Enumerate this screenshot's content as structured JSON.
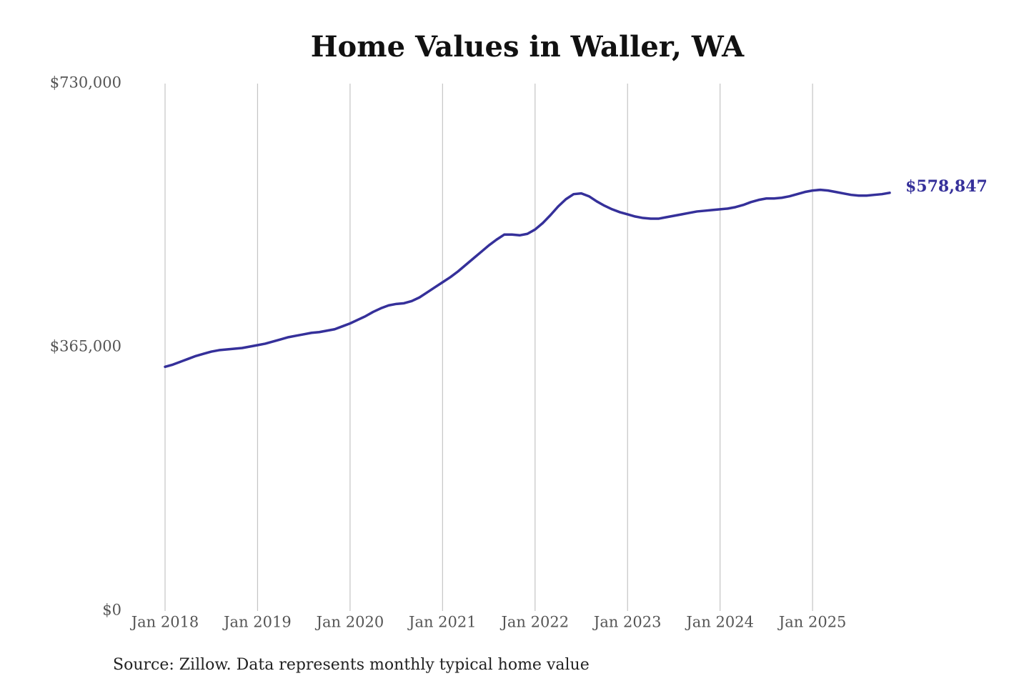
{
  "chart_data": {
    "type": "line",
    "title": "Home Values in Waller, WA",
    "source": "Source: Zillow. Data represents monthly typical home value",
    "x": [
      "2018-01",
      "2018-02",
      "2018-03",
      "2018-04",
      "2018-05",
      "2018-06",
      "2018-07",
      "2018-08",
      "2018-09",
      "2018-10",
      "2018-11",
      "2018-12",
      "2019-01",
      "2019-02",
      "2019-03",
      "2019-04",
      "2019-05",
      "2019-06",
      "2019-07",
      "2019-08",
      "2019-09",
      "2019-10",
      "2019-11",
      "2019-12",
      "2020-01",
      "2020-02",
      "2020-03",
      "2020-04",
      "2020-05",
      "2020-06",
      "2020-07",
      "2020-08",
      "2020-09",
      "2020-10",
      "2020-11",
      "2020-12",
      "2021-01",
      "2021-02",
      "2021-03",
      "2021-04",
      "2021-05",
      "2021-06",
      "2021-07",
      "2021-08",
      "2021-09",
      "2021-10",
      "2021-11",
      "2021-12",
      "2022-01",
      "2022-02",
      "2022-03",
      "2022-04",
      "2022-05",
      "2022-06",
      "2022-07",
      "2022-08",
      "2022-09",
      "2022-10",
      "2022-11",
      "2022-12",
      "2023-01",
      "2023-02",
      "2023-03",
      "2023-04",
      "2023-05",
      "2023-06",
      "2023-07",
      "2023-08",
      "2023-09",
      "2023-10",
      "2023-11",
      "2023-12",
      "2024-01",
      "2024-02",
      "2024-03",
      "2024-04",
      "2024-05",
      "2024-06",
      "2024-07",
      "2024-08",
      "2024-09",
      "2024-10",
      "2024-11",
      "2024-12",
      "2025-01",
      "2025-02",
      "2025-03",
      "2025-04",
      "2025-05",
      "2025-06",
      "2025-07",
      "2025-08",
      "2025-09",
      "2025-10",
      "2025-11"
    ],
    "series": [
      {
        "name": "Home value",
        "color": "#35309a",
        "values": [
          338000,
          341000,
          345000,
          349000,
          353000,
          356000,
          359000,
          361000,
          362000,
          363000,
          364000,
          366000,
          368000,
          370000,
          373000,
          376000,
          379000,
          381000,
          383000,
          385000,
          386000,
          388000,
          390000,
          394000,
          398000,
          403000,
          408000,
          414000,
          419000,
          423000,
          425000,
          426000,
          429000,
          434000,
          441000,
          448000,
          455000,
          462000,
          470000,
          479000,
          488000,
          497000,
          506000,
          514000,
          521000,
          521000,
          520000,
          522000,
          528000,
          537000,
          548000,
          560000,
          570000,
          577000,
          578000,
          574000,
          567000,
          561000,
          556000,
          552000,
          549000,
          546000,
          544000,
          543000,
          543000,
          545000,
          547000,
          549000,
          551000,
          553000,
          554000,
          555000,
          556000,
          557000,
          559000,
          562000,
          566000,
          569000,
          571000,
          571000,
          572000,
          574000,
          577000,
          580000,
          582000,
          583000,
          582000,
          580000,
          578000,
          576000,
          575000,
          575000,
          576000,
          577000,
          578847
        ],
        "value_labels": [
          null,
          null,
          null,
          null,
          null,
          null,
          null,
          null,
          null,
          null,
          null,
          null,
          null,
          null,
          null,
          null,
          null,
          null,
          null,
          null,
          null,
          null,
          null,
          null,
          null,
          null,
          null,
          null,
          null,
          null,
          null,
          null,
          null,
          null,
          null,
          null,
          null,
          null,
          null,
          null,
          null,
          null,
          null,
          null,
          null,
          null,
          null,
          null,
          null,
          null,
          null,
          null,
          null,
          null,
          null,
          null,
          null,
          null,
          null,
          null,
          null,
          null,
          null,
          null,
          null,
          null,
          null,
          null,
          null,
          null,
          null,
          null,
          null,
          null,
          null,
          null,
          null,
          null,
          null,
          null,
          null,
          null,
          null,
          null,
          null,
          null,
          null,
          null,
          null,
          null,
          null,
          null,
          null,
          null,
          "$578,847"
        ]
      }
    ],
    "xlim": [
      "2018-01",
      "2025-11"
    ],
    "xticks": [
      {
        "value": "2018-01",
        "label": "Jan 2018"
      },
      {
        "value": "2019-01",
        "label": "Jan 2019"
      },
      {
        "value": "2020-01",
        "label": "Jan 2020"
      },
      {
        "value": "2021-01",
        "label": "Jan 2021"
      },
      {
        "value": "2022-01",
        "label": "Jan 2022"
      },
      {
        "value": "2023-01",
        "label": "Jan 2023"
      },
      {
        "value": "2024-01",
        "label": "Jan 2024"
      },
      {
        "value": "2025-01",
        "label": "Jan 2025"
      }
    ],
    "ylim": [
      0,
      730000
    ],
    "yticks": [
      {
        "value": 0,
        "label": "$0"
      },
      {
        "value": 365000,
        "label": "$365,000"
      },
      {
        "value": 730000,
        "label": "$730,000"
      }
    ],
    "grid": true
  }
}
